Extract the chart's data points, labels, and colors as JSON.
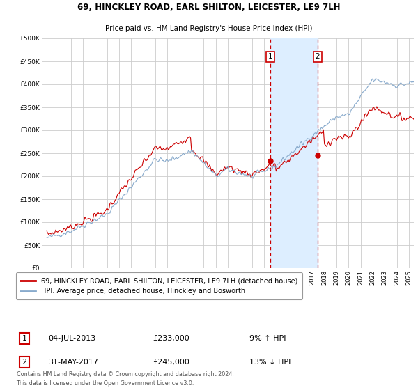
{
  "title_line1": "69, HINCKLEY ROAD, EARL SHILTON, LEICESTER, LE9 7LH",
  "title_line2": "Price paid vs. HM Land Registry's House Price Index (HPI)",
  "ylabel_ticks": [
    "£0",
    "£50K",
    "£100K",
    "£150K",
    "£200K",
    "£250K",
    "£300K",
    "£350K",
    "£400K",
    "£450K",
    "£500K"
  ],
  "ytick_values": [
    0,
    50000,
    100000,
    150000,
    200000,
    250000,
    300000,
    350000,
    400000,
    450000,
    500000
  ],
  "xlim_start": 1994.6,
  "xlim_end": 2025.4,
  "ylim": [
    0,
    500000
  ],
  "purchase1_x": 2013.5,
  "purchase1_y": 233000,
  "purchase1_label": "1",
  "purchase1_date": "04-JUL-2013",
  "purchase1_price": "£233,000",
  "purchase1_hpi": "9% ↑ HPI",
  "purchase2_x": 2017.42,
  "purchase2_y": 245000,
  "purchase2_label": "2",
  "purchase2_date": "31-MAY-2017",
  "purchase2_price": "£245,000",
  "purchase2_hpi": "13% ↓ HPI",
  "legend_line1": "69, HINCKLEY ROAD, EARL SHILTON, LEICESTER, LE9 7LH (detached house)",
  "legend_line2": "HPI: Average price, detached house, Hinckley and Bosworth",
  "footer": "Contains HM Land Registry data © Crown copyright and database right 2024.\nThis data is licensed under the Open Government Licence v3.0.",
  "line_color_red": "#cc0000",
  "line_color_blue": "#88aacc",
  "highlight_color": "#ddeeff",
  "vline_color": "#cc0000",
  "box_color": "#cc0000",
  "grid_color": "#cccccc",
  "bg_color": "#ffffff"
}
